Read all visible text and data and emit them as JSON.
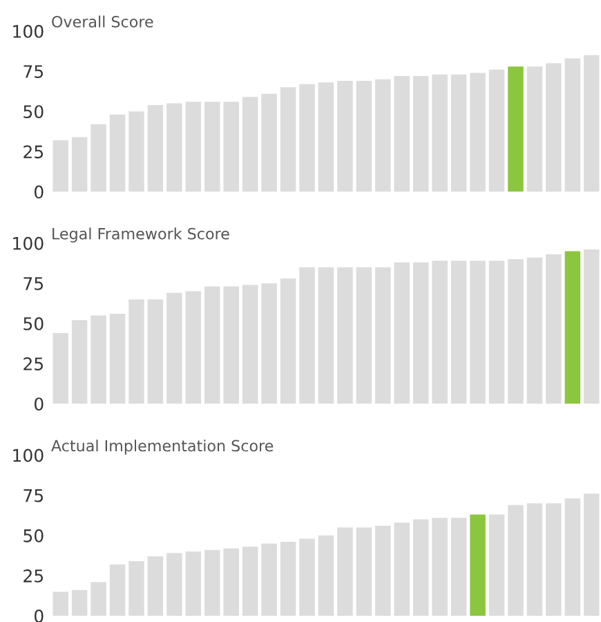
{
  "chart_data": [
    {
      "type": "bar",
      "title": "Overall Score",
      "categories": [
        null,
        null,
        null,
        null,
        null,
        null,
        null,
        null,
        null,
        null,
        null,
        null,
        null,
        null,
        null,
        null,
        null,
        null,
        null,
        null,
        null,
        null,
        null,
        null,
        null,
        null,
        null,
        null,
        null
      ],
      "values": [
        32,
        34,
        42,
        48,
        50,
        54,
        55,
        56,
        56,
        56,
        59,
        61,
        65,
        67,
        68,
        69,
        69,
        70,
        72,
        72,
        73,
        73,
        74,
        76,
        78,
        78,
        80,
        83,
        85
      ],
      "colors": [
        "#dcdcdc",
        "#dcdcdc",
        "#dcdcdc",
        "#dcdcdc",
        "#dcdcdc",
        "#dcdcdc",
        "#dcdcdc",
        "#dcdcdc",
        "#dcdcdc",
        "#dcdcdc",
        "#dcdcdc",
        "#dcdcdc",
        "#dcdcdc",
        "#dcdcdc",
        "#dcdcdc",
        "#dcdcdc",
        "#dcdcdc",
        "#dcdcdc",
        "#dcdcdc",
        "#dcdcdc",
        "#dcdcdc",
        "#dcdcdc",
        "#dcdcdc",
        "#dcdcdc",
        "#8cc63f",
        "#dcdcdc",
        "#dcdcdc",
        "#dcdcdc",
        "#dcdcdc"
      ],
      "ylim": [
        0,
        100
      ],
      "yticks": [
        0,
        25,
        50,
        75,
        100
      ],
      "tick_labels": "y",
      "grid": false,
      "legend": false
    },
    {
      "type": "bar",
      "title": "Legal Framework Score",
      "categories": [
        null,
        null,
        null,
        null,
        null,
        null,
        null,
        null,
        null,
        null,
        null,
        null,
        null,
        null,
        null,
        null,
        null,
        null,
        null,
        null,
        null,
        null,
        null,
        null,
        null,
        null,
        null,
        null,
        null
      ],
      "values": [
        44,
        52,
        55,
        56,
        65,
        65,
        69,
        70,
        73,
        73,
        74,
        75,
        78,
        85,
        85,
        85,
        85,
        85,
        88,
        88,
        89,
        89,
        89,
        89,
        90,
        91,
        93,
        95,
        96
      ],
      "colors": [
        "#dcdcdc",
        "#dcdcdc",
        "#dcdcdc",
        "#dcdcdc",
        "#dcdcdc",
        "#dcdcdc",
        "#dcdcdc",
        "#dcdcdc",
        "#dcdcdc",
        "#dcdcdc",
        "#dcdcdc",
        "#dcdcdc",
        "#dcdcdc",
        "#dcdcdc",
        "#dcdcdc",
        "#dcdcdc",
        "#dcdcdc",
        "#dcdcdc",
        "#dcdcdc",
        "#dcdcdc",
        "#dcdcdc",
        "#dcdcdc",
        "#dcdcdc",
        "#dcdcdc",
        "#dcdcdc",
        "#dcdcdc",
        "#dcdcdc",
        "#8cc63f",
        "#dcdcdc"
      ],
      "ylim": [
        0,
        100
      ],
      "yticks": [
        0,
        25,
        50,
        75,
        100
      ],
      "tick_labels": "y",
      "grid": false,
      "legend": false
    },
    {
      "type": "bar",
      "title": "Actual Implementation Score",
      "categories": [
        null,
        null,
        null,
        null,
        null,
        null,
        null,
        null,
        null,
        null,
        null,
        null,
        null,
        null,
        null,
        null,
        null,
        null,
        null,
        null,
        null,
        null,
        null,
        null,
        null,
        null,
        null,
        null,
        null
      ],
      "values": [
        15,
        16,
        21,
        32,
        34,
        37,
        39,
        40,
        41,
        42,
        43,
        45,
        46,
        48,
        50,
        55,
        55,
        56,
        58,
        60,
        61,
        61,
        63,
        63,
        69,
        70,
        70,
        73,
        76
      ],
      "colors": [
        "#dcdcdc",
        "#dcdcdc",
        "#dcdcdc",
        "#dcdcdc",
        "#dcdcdc",
        "#dcdcdc",
        "#dcdcdc",
        "#dcdcdc",
        "#dcdcdc",
        "#dcdcdc",
        "#dcdcdc",
        "#dcdcdc",
        "#dcdcdc",
        "#dcdcdc",
        "#dcdcdc",
        "#dcdcdc",
        "#dcdcdc",
        "#dcdcdc",
        "#dcdcdc",
        "#dcdcdc",
        "#dcdcdc",
        "#dcdcdc",
        "#8cc63f",
        "#dcdcdc",
        "#dcdcdc",
        "#dcdcdc",
        "#dcdcdc",
        "#dcdcdc",
        "#dcdcdc"
      ],
      "ylim": [
        0,
        100
      ],
      "yticks": [
        0,
        25,
        50,
        75,
        100
      ],
      "tick_labels": "y",
      "grid": false,
      "legend": false
    }
  ]
}
